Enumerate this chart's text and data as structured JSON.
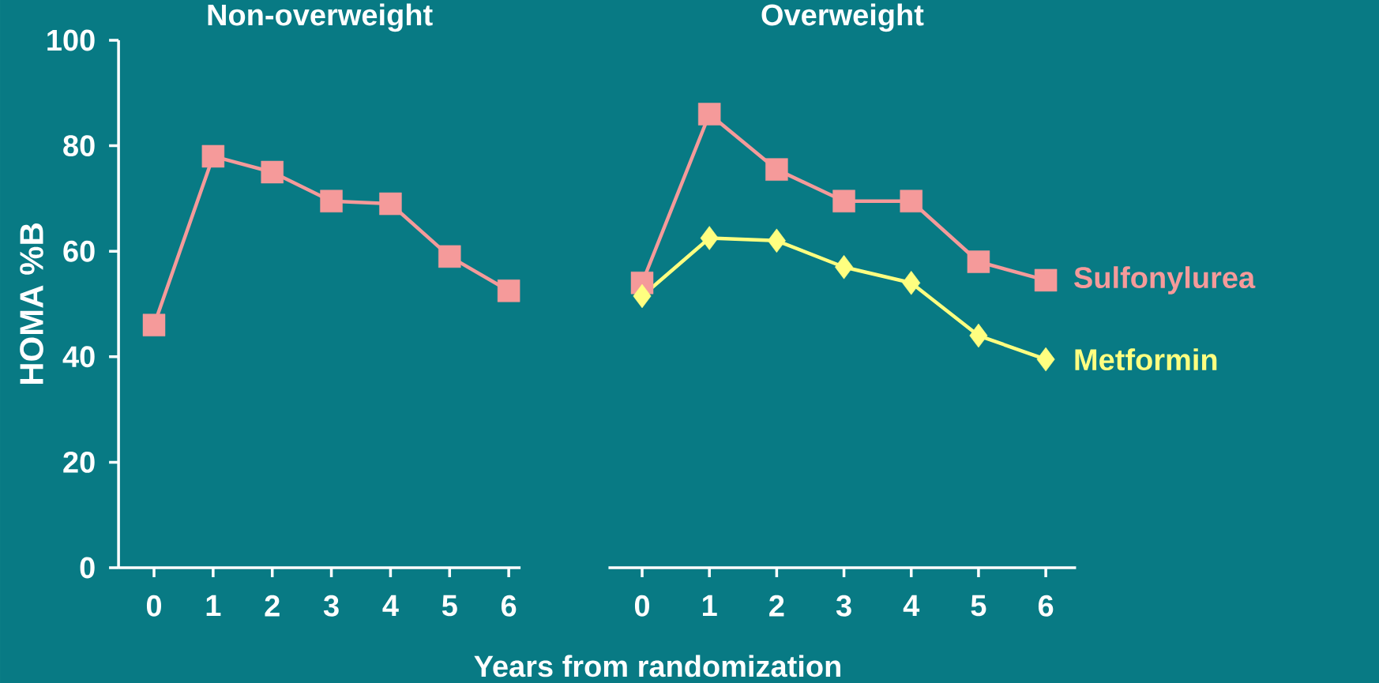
{
  "chart_data": [
    {
      "type": "line",
      "title": "Non-overweight",
      "xlabel": "Years from randomization",
      "ylabel": "HOMA %B",
      "x": [
        0,
        1,
        2,
        3,
        4,
        5,
        6
      ],
      "xlim": [
        -0.6,
        6.2
      ],
      "xticks": [
        0,
        1,
        2,
        3,
        4,
        5,
        6
      ],
      "ylim": [
        0,
        100
      ],
      "yticks": [
        0,
        20,
        40,
        60,
        80,
        100
      ],
      "series": [
        {
          "color": "#f59a9a",
          "values": [
            46,
            78,
            75,
            69.5,
            69,
            59,
            52.5
          ],
          "marker": "square"
        }
      ]
    },
    {
      "type": "line",
      "title": "Overweight",
      "x": [
        0,
        1,
        2,
        3,
        4,
        5,
        6
      ],
      "xlim": [
        -0.5,
        6.45
      ],
      "xticks": [
        0,
        1,
        2,
        3,
        4,
        5,
        6
      ],
      "ylim": [
        0,
        100
      ],
      "tick_labels": "x",
      "series": [
        {
          "name": "Sulfonylurea",
          "color": "#f59a9a",
          "values": [
            54,
            86,
            75.5,
            69.5,
            69.5,
            58,
            54.5
          ],
          "marker": "square"
        },
        {
          "name": "Metformin",
          "color": "#ffff80",
          "values": [
            51.5,
            62.5,
            62,
            57,
            54,
            44,
            39.5
          ],
          "marker": "diamond"
        }
      ]
    }
  ]
}
